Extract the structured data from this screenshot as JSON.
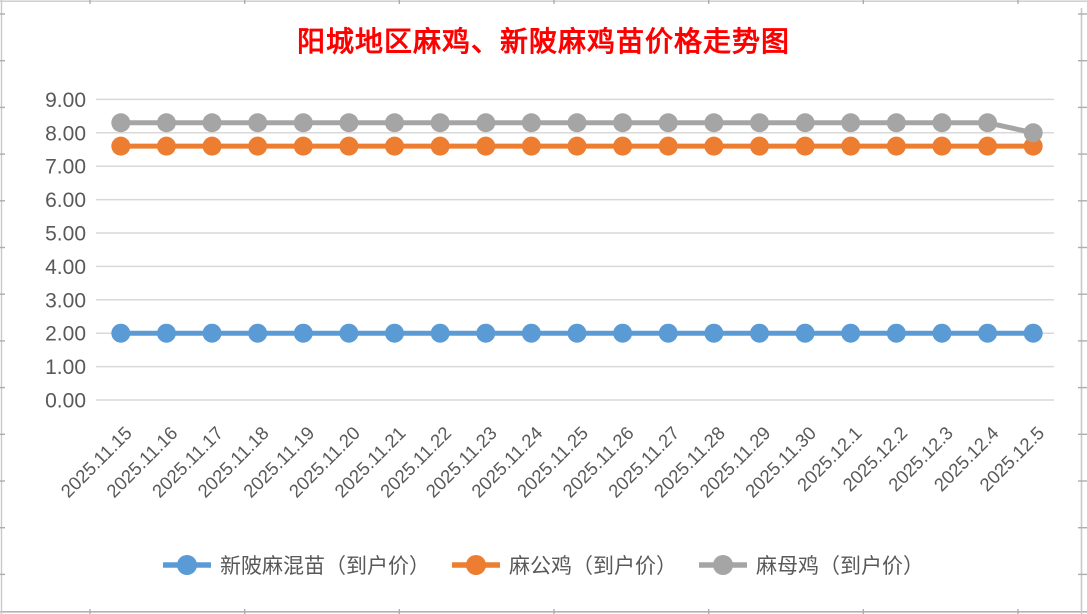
{
  "chart_data": {
    "type": "line",
    "title": "阳城地区麻鸡、新陂麻鸡苗价格走势图",
    "x_categories": [
      "2025.11.15",
      "2025.11.16",
      "2025.11.17",
      "2025.11.18",
      "2025.11.19",
      "2025.11.20",
      "2025.11.21",
      "2025.11.22",
      "2025.11.23",
      "2025.11.24",
      "2025.11.25",
      "2025.11.26",
      "2025.11.27",
      "2025.11.28",
      "2025.11.29",
      "2025.11.30",
      "2025.12.1",
      "2025.12.2",
      "2025.12.3",
      "2025.12.4",
      "2025.12.5"
    ],
    "series": [
      {
        "name": "新陂麻混苗（到户价）",
        "color": "#5B9BD5",
        "values": [
          2,
          2,
          2,
          2,
          2,
          2,
          2,
          2,
          2,
          2,
          2,
          2,
          2,
          2,
          2,
          2,
          2,
          2,
          2,
          2,
          2
        ]
      },
      {
        "name": "麻公鸡（到户价）",
        "color": "#ED7D31",
        "values": [
          7.6,
          7.6,
          7.6,
          7.6,
          7.6,
          7.6,
          7.6,
          7.6,
          7.6,
          7.6,
          7.6,
          7.6,
          7.6,
          7.6,
          7.6,
          7.6,
          7.6,
          7.6,
          7.6,
          7.6,
          7.6
        ]
      },
      {
        "name": "麻母鸡（到户价）",
        "color": "#A5A5A5",
        "values": [
          8.3,
          8.3,
          8.3,
          8.3,
          8.3,
          8.3,
          8.3,
          8.3,
          8.3,
          8.3,
          8.3,
          8.3,
          8.3,
          8.3,
          8.3,
          8.3,
          8.3,
          8.3,
          8.3,
          8.3,
          8
        ]
      }
    ],
    "ylim": [
      0,
      9
    ],
    "ytick_labels": [
      "0.00",
      "1.00",
      "2.00",
      "3.00",
      "4.00",
      "5.00",
      "6.00",
      "7.00",
      "8.00",
      "9.00"
    ],
    "grid": true,
    "legend_position": "bottom",
    "colors": {
      "title": "#FF0000",
      "axis_text": "#595959",
      "gridline": "#D9D9D9",
      "sheet_line": "#C9C9C9",
      "sheet_tick": "#ADADAD"
    }
  }
}
